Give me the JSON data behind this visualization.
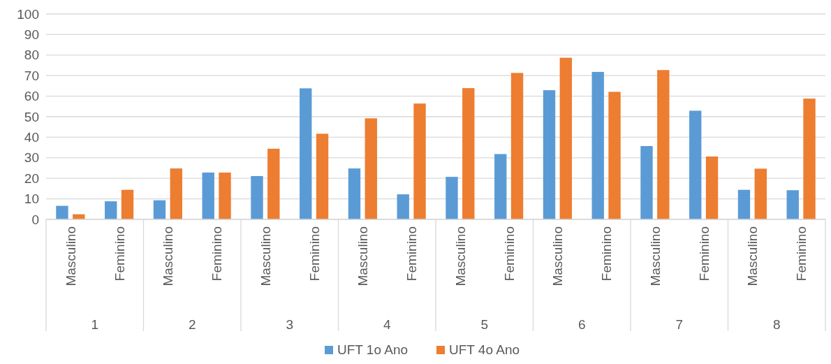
{
  "chart_data": {
    "type": "bar",
    "categories": [
      "Masculino",
      "Feminino",
      "Masculino",
      "Feminino",
      "Masculino",
      "Feminino",
      "Masculino",
      "Feminino",
      "Masculino",
      "Feminino",
      "Masculino",
      "Feminino",
      "Masculino",
      "Feminino",
      "Masculino",
      "Feminino"
    ],
    "annotations": [
      "1",
      "2",
      "3",
      "4",
      "5",
      "6",
      "7",
      "8"
    ],
    "series": [
      {
        "name": "UFT 1o Ano",
        "color": "#5b9bd5",
        "values": [
          6.6,
          8.8,
          9.3,
          22.8,
          21.1,
          63.8,
          24.8,
          12.2,
          20.7,
          31.8,
          62.9,
          71.8,
          35.7,
          52.9,
          14.4,
          14.2
        ]
      },
      {
        "name": "UFT 4o Ano",
        "color": "#ed7d31",
        "values": [
          2.5,
          14.4,
          24.8,
          22.8,
          34.4,
          41.7,
          49.2,
          56.4,
          63.9,
          71.3,
          78.7,
          62.1,
          72.7,
          30.6,
          24.7,
          58.8
        ]
      }
    ],
    "ylim": [
      0,
      100
    ],
    "yticks": [
      0,
      10,
      20,
      30,
      40,
      50,
      60,
      70,
      80,
      90,
      100
    ],
    "grid": "y",
    "legend": "bottom"
  }
}
